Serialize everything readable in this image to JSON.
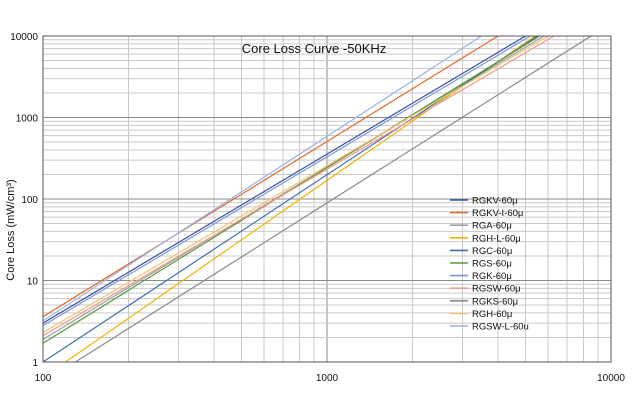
{
  "chart_data": {
    "type": "line",
    "title": "Core Loss Curve  -50KHz",
    "ylabel": "Core Loss (mW/cm³)",
    "xlabel": "",
    "xscale": "log",
    "yscale": "log",
    "xlim": [
      100,
      10000
    ],
    "ylim": [
      1,
      10000
    ],
    "x_ticks": [
      "100",
      "1000",
      "10000"
    ],
    "y_ticks": [
      "1",
      "10",
      "100",
      "1000",
      "10000"
    ],
    "grid": true,
    "legend": "center-right",
    "series": [
      {
        "name": "RGKV-60μ",
        "color": "#3b4fa0",
        "x": [
          100,
          5000
        ],
        "y": [
          3.0,
          10000
        ]
      },
      {
        "name": "RGKV-I-60μ",
        "color": "#e06a2c",
        "x": [
          100,
          4000
        ],
        "y": [
          3.6,
          10000
        ]
      },
      {
        "name": "RGA-60μ",
        "color": "#9aa0a6",
        "x": [
          100,
          5800
        ],
        "y": [
          1.9,
          10000
        ]
      },
      {
        "name": "RGH-L-60μ",
        "color": "#f0b400",
        "x": [
          120,
          5400
        ],
        "y": [
          1.0,
          10000
        ]
      },
      {
        "name": "RGC-60μ",
        "color": "#3d6fb5",
        "x": [
          100,
          5500
        ],
        "y": [
          1.0,
          10000
        ]
      },
      {
        "name": "RGS-60μ",
        "color": "#5a9a3c",
        "x": [
          100,
          5600
        ],
        "y": [
          1.7,
          10000
        ]
      },
      {
        "name": "RGK-60μ",
        "color": "#7a9ad6",
        "x": [
          100,
          5200
        ],
        "y": [
          2.8,
          10000
        ]
      },
      {
        "name": "RGSW-60μ",
        "color": "#f09a8a",
        "x": [
          100,
          6300
        ],
        "y": [
          2.1,
          10000
        ]
      },
      {
        "name": "RGKS-60μ",
        "color": "#8c8c8c",
        "x": [
          130,
          8500
        ],
        "y": [
          1.0,
          10000
        ]
      },
      {
        "name": "RGH-60μ",
        "color": "#f2c470",
        "x": [
          100,
          6000
        ],
        "y": [
          2.3,
          10000
        ]
      },
      {
        "name": "RGSW-L-60u",
        "color": "#9bb4e8",
        "x": [
          100,
          3500
        ],
        "y": [
          3.2,
          10000
        ]
      }
    ]
  }
}
